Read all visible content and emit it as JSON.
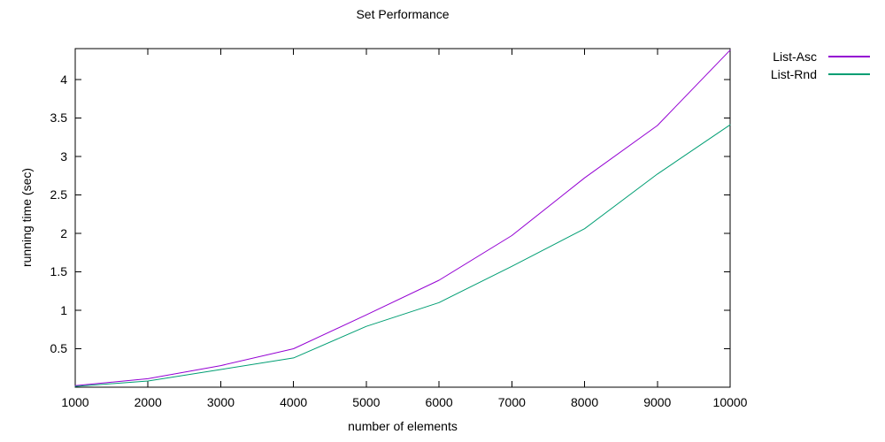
{
  "window": {
    "background": "#ffffff"
  },
  "chart_data": {
    "type": "line",
    "title": "Set Performance",
    "xlabel": "number of elements",
    "ylabel": "running time (sec)",
    "x": [
      1000,
      2000,
      3000,
      4000,
      5000,
      6000,
      7000,
      8000,
      9000,
      10000
    ],
    "series": [
      {
        "name": "List-Asc",
        "color": "#9400d3",
        "values": [
          0.02,
          0.11,
          0.28,
          0.5,
          0.94,
          1.39,
          1.97,
          2.72,
          3.4,
          4.38
        ]
      },
      {
        "name": "List-Rnd",
        "color": "#009e73",
        "values": [
          0.01,
          0.08,
          0.23,
          0.38,
          0.79,
          1.1,
          1.57,
          2.06,
          2.77,
          3.41
        ]
      }
    ],
    "xlim": [
      1000,
      10000
    ],
    "ylim": [
      0,
      4.4
    ],
    "xtick_values": [
      1000,
      2000,
      3000,
      4000,
      5000,
      6000,
      7000,
      8000,
      9000,
      10000
    ],
    "xtick_labels": [
      "1000",
      "2000",
      "3000",
      "4000",
      "5000",
      "6000",
      "7000",
      "8000",
      "9000",
      "10000"
    ],
    "ytick_values": [
      0.5,
      1,
      1.5,
      2,
      2.5,
      3,
      3.5,
      4
    ],
    "ytick_labels": [
      "0.5",
      "1",
      "1.5",
      "2",
      "2.5",
      "3",
      "3.5",
      "4"
    ],
    "grid": false,
    "legend_position": "outside-top-right",
    "tick_style": "inward-mirrored",
    "line_width": 1,
    "axis_color": "#000000",
    "text_color": "#000000"
  }
}
